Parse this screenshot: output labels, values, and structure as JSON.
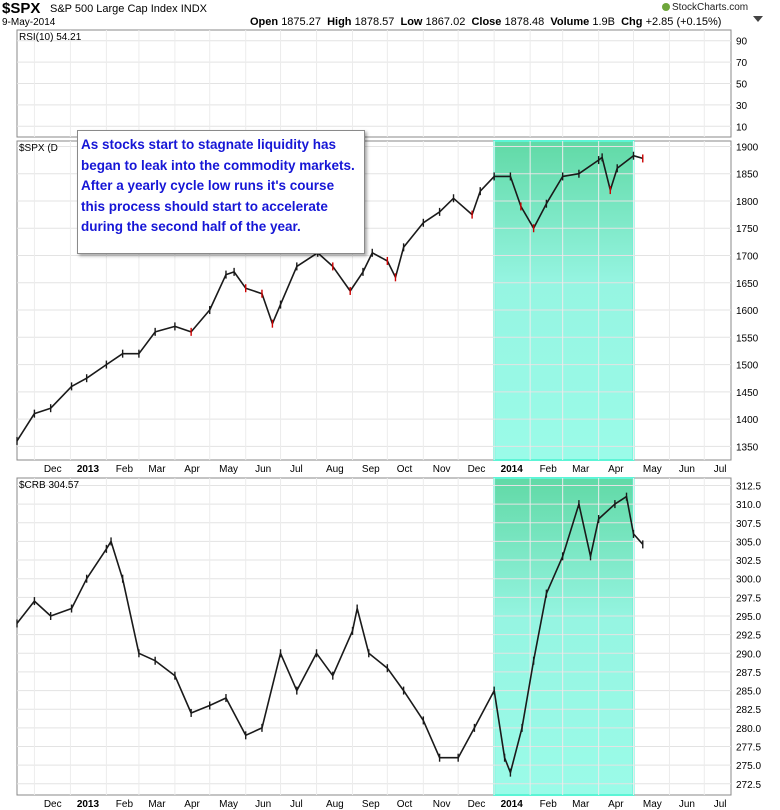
{
  "header": {
    "symbol": "$SPX",
    "name": "S&P 500 Large Cap Index",
    "exchange": "INDX",
    "date": "9-May-2014",
    "stats": {
      "open": "1875.27",
      "high": "1878.57",
      "low": "1867.02",
      "close": "1878.48",
      "volume": "1.9B",
      "chg": "+2.85 (+0.15%)"
    },
    "stat_labels": {
      "open": "Open",
      "high": "High",
      "low": "Low",
      "close": "Close",
      "volume": "Volume",
      "chg": "Chg"
    },
    "brand": "StockCharts.com",
    "dropdown_icon": "triangle-down"
  },
  "colors": {
    "highlight": "#5cf5d6",
    "up": "#1a1a1a",
    "down": "#cc0000",
    "annotation_text": "#1616d6"
  },
  "annotation": "As stocks start to stagnate liquidity has began to leak into the commodity markets. After a yearly cycle low runs it's course this process should start to accelerate during the second half of the year.",
  "chart_data": [
    {
      "panel": "RSI",
      "type": "line",
      "label": "RSI(10) 54.21",
      "ticks": [
        "90",
        "70",
        "50",
        "30",
        "10"
      ],
      "ylim": [
        0,
        100
      ],
      "series_visible": false
    },
    {
      "panel": "SPX",
      "type": "line",
      "label": "$SPX (D",
      "ylim": [
        1325,
        1910
      ],
      "ticks": [
        "1900",
        "1850",
        "1800",
        "1750",
        "1700",
        "1650",
        "1600",
        "1550",
        "1500",
        "1450",
        "1400",
        "1350"
      ],
      "x_labels": [
        "Dec",
        "2013",
        "Feb",
        "Mar",
        "Apr",
        "May",
        "Jun",
        "Jul",
        "Aug",
        "Sep",
        "Oct",
        "Nov",
        "Dec",
        "2014",
        "Feb",
        "Mar",
        "Apr",
        "May",
        "Jun",
        "Jul"
      ],
      "highlight": {
        "from": "2014-01-01",
        "to": "2014-05-01"
      },
      "x": [
        "2012-11-16",
        "2012-12-01",
        "2012-12-15",
        "2013-01-02",
        "2013-01-15",
        "2013-02-01",
        "2013-02-15",
        "2013-03-01",
        "2013-03-15",
        "2013-04-01",
        "2013-04-15",
        "2013-05-01",
        "2013-05-15",
        "2013-05-22",
        "2013-06-01",
        "2013-06-15",
        "2013-06-24",
        "2013-07-01",
        "2013-07-15",
        "2013-08-02",
        "2013-08-15",
        "2013-08-30",
        "2013-09-10",
        "2013-09-18",
        "2013-10-01",
        "2013-10-08",
        "2013-10-15",
        "2013-11-01",
        "2013-11-15",
        "2013-11-27",
        "2013-12-13",
        "2013-12-20",
        "2014-01-01",
        "2014-01-15",
        "2014-01-24",
        "2014-02-04",
        "2014-02-15",
        "2014-03-01",
        "2014-03-15",
        "2014-04-01",
        "2014-04-04",
        "2014-04-11",
        "2014-04-17",
        "2014-05-01",
        "2014-05-09"
      ],
      "y": [
        1360,
        1410,
        1420,
        1460,
        1475,
        1500,
        1520,
        1520,
        1560,
        1570,
        1560,
        1600,
        1665,
        1670,
        1640,
        1630,
        1575,
        1610,
        1680,
        1705,
        1680,
        1635,
        1670,
        1705,
        1690,
        1660,
        1715,
        1760,
        1780,
        1805,
        1775,
        1818,
        1845,
        1845,
        1790,
        1750,
        1795,
        1845,
        1850,
        1875,
        1880,
        1820,
        1860,
        1883,
        1878
      ]
    },
    {
      "panel": "CRB",
      "type": "line",
      "label": "$CRB 304.57",
      "ylim": [
        271,
        313.5
      ],
      "ticks": [
        "312.5",
        "310.0",
        "307.5",
        "305.0",
        "302.5",
        "300.0",
        "297.5",
        "295.0",
        "292.5",
        "290.0",
        "287.5",
        "285.0",
        "282.5",
        "280.0",
        "277.5",
        "275.0",
        "272.5"
      ],
      "x_labels": [
        "Dec",
        "2013",
        "Feb",
        "Mar",
        "Apr",
        "May",
        "Jun",
        "Jul",
        "Aug",
        "Sep",
        "Oct",
        "Nov",
        "Dec",
        "2014",
        "Feb",
        "Mar",
        "Apr",
        "May",
        "Jun",
        "Jul"
      ],
      "highlight": {
        "from": "2014-01-01",
        "to": "2014-05-01"
      },
      "x": [
        "2012-11-16",
        "2012-12-01",
        "2012-12-15",
        "2013-01-02",
        "2013-01-15",
        "2013-02-01",
        "2013-02-05",
        "2013-02-15",
        "2013-03-01",
        "2013-03-15",
        "2013-04-01",
        "2013-04-15",
        "2013-05-01",
        "2013-05-15",
        "2013-06-01",
        "2013-06-15",
        "2013-07-01",
        "2013-07-15",
        "2013-08-01",
        "2013-08-15",
        "2013-09-01",
        "2013-09-05",
        "2013-09-15",
        "2013-10-01",
        "2013-10-15",
        "2013-11-01",
        "2013-11-15",
        "2013-12-01",
        "2013-12-15",
        "2014-01-01",
        "2014-01-10",
        "2014-01-15",
        "2014-01-25",
        "2014-02-04",
        "2014-02-15",
        "2014-03-01",
        "2014-03-15",
        "2014-03-25",
        "2014-04-01",
        "2014-04-15",
        "2014-04-25",
        "2014-05-01",
        "2014-05-09"
      ],
      "y": [
        294,
        297,
        295,
        296,
        300,
        304,
        305,
        300,
        290,
        289,
        287,
        282,
        283,
        284,
        279,
        280,
        290,
        285,
        290,
        287,
        293,
        296,
        290,
        288,
        285,
        281,
        276,
        276,
        280,
        285,
        276,
        274,
        280,
        289,
        298,
        303,
        310,
        303,
        308,
        310,
        311,
        306,
        304.6
      ]
    }
  ]
}
